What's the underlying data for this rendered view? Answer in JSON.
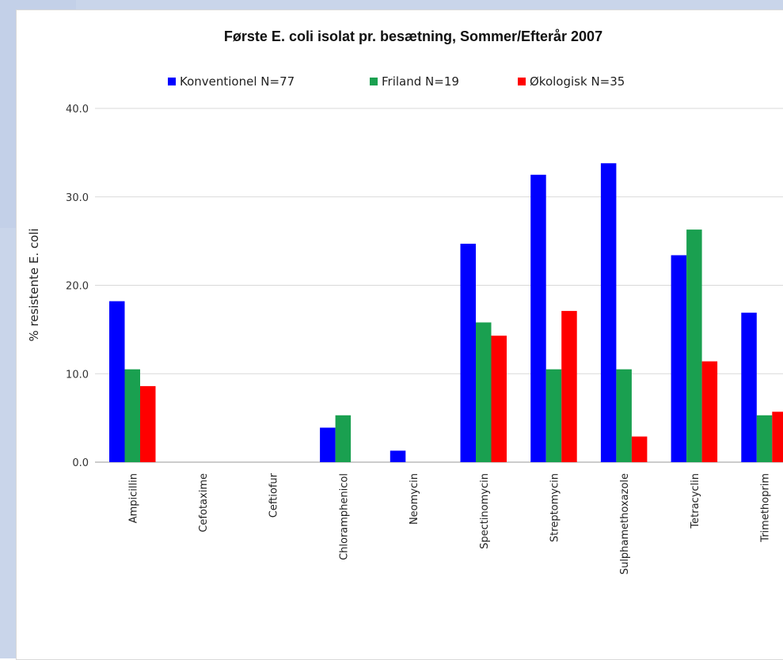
{
  "chart_data": {
    "type": "bar",
    "title": "Første E. coli isolat pr. besætning, Sommer/Efterår 2007",
    "xlabel": "",
    "ylabel": "% resistente E. coli",
    "ylim": [
      0,
      40
    ],
    "yticks": [
      "0.0",
      "10.0",
      "20.0",
      "30.0",
      "40.0"
    ],
    "grid": true,
    "legend_position": "top",
    "categories": [
      "Ampicillin",
      "Cefotaxime",
      "Ceftiofur",
      "Chloramphenicol",
      "Neomycin",
      "Spectinomycin",
      "Streptomycin",
      "Sulphamethoxazole",
      "Tetracyclin",
      "Trimethoprim"
    ],
    "series": [
      {
        "name": "Konventionel N=77",
        "color": "#0000ff",
        "values": [
          18.2,
          0,
          0,
          3.9,
          1.3,
          24.7,
          32.5,
          33.8,
          23.4,
          16.9
        ]
      },
      {
        "name": "Friland N=19",
        "color": "#1aa050",
        "values": [
          10.5,
          0,
          0,
          5.3,
          0,
          15.8,
          10.5,
          10.5,
          26.3,
          5.3
        ]
      },
      {
        "name": "Økologisk N=35",
        "color": "#ff0000",
        "values": [
          8.6,
          0,
          0,
          0,
          0,
          14.3,
          17.1,
          2.9,
          11.4,
          5.7
        ]
      }
    ]
  }
}
